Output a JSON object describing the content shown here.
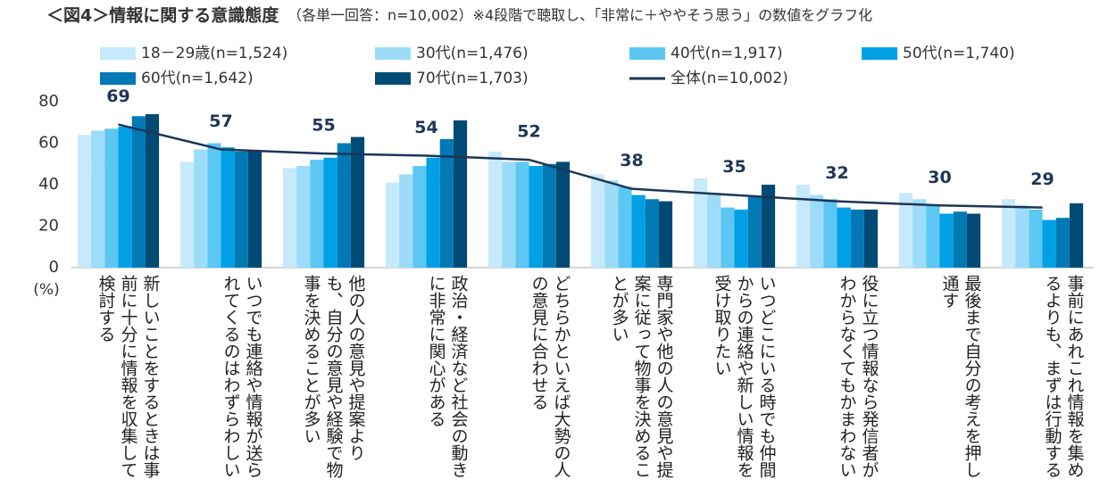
{
  "chart_data": {
    "type": "bar",
    "title": "＜図4＞情報に関する意識態度",
    "subtitle": "（各単一回答：n=10,002）※4段階で聴取し、「非常に＋ややそう思う」の数値をグラフ化",
    "y_unit": "(%)",
    "categories": [
      "新しいことをするときは事前に十分に情報を収集して検討する",
      "いつでも連絡や情報が送られてくるのはわずらわしい",
      "他の人の意見や提案よりも、自分の意見や経験で物事を決めることが多い",
      "政治・経済など社会の動きに非常に関心がある",
      "どちらかといえば大勢の人の意見に合わせる",
      "専門家や他の人の意見や提案に従って物事を決めることが多い",
      "いつどこにいる時でも仲間からの連絡や新しい情報を受け取りたい",
      "役に立つ情報なら発信者がわからなくてもかまわない",
      "最後まで自分の考えを押し通す",
      "事前にあれこれ情報を集めるよりも、まずは行動する"
    ],
    "series": [
      {
        "name": "18－29歳(n=1,524)",
        "color": "#c6eafb",
        "values": [
          64,
          51,
          48,
          41,
          56,
          45,
          43,
          40,
          36,
          33
        ]
      },
      {
        "name": "30代(n=1,476)",
        "color": "#9ddcf8",
        "values": [
          66,
          57,
          49,
          45,
          51,
          42,
          36,
          35,
          33,
          30
        ]
      },
      {
        "name": "40代(n=1,917)",
        "color": "#5cc7f3",
        "values": [
          67,
          60,
          52,
          49,
          51,
          39,
          29,
          33,
          30,
          28
        ]
      },
      {
        "name": "50代(n=1,740)",
        "color": "#00a0e6",
        "values": [
          68,
          58,
          53,
          53,
          49,
          35,
          28,
          29,
          26,
          23
        ]
      },
      {
        "name": "60代(n=1,642)",
        "color": "#0079b5",
        "values": [
          73,
          56,
          60,
          62,
          50,
          33,
          34,
          28,
          27,
          24
        ]
      },
      {
        "name": "70代(n=1,703)",
        "color": "#004b75",
        "values": [
          74,
          56,
          63,
          71,
          51,
          32,
          40,
          28,
          26,
          31
        ]
      }
    ],
    "line": {
      "name": "全体(n=10,002)",
      "color": "#1d3557",
      "values": [
        69,
        57,
        55,
        54,
        52,
        38,
        35,
        32,
        30,
        29
      ]
    },
    "ylim": [
      0,
      80
    ],
    "yticks": [
      0,
      20,
      40,
      60,
      80
    ],
    "grid": false
  }
}
